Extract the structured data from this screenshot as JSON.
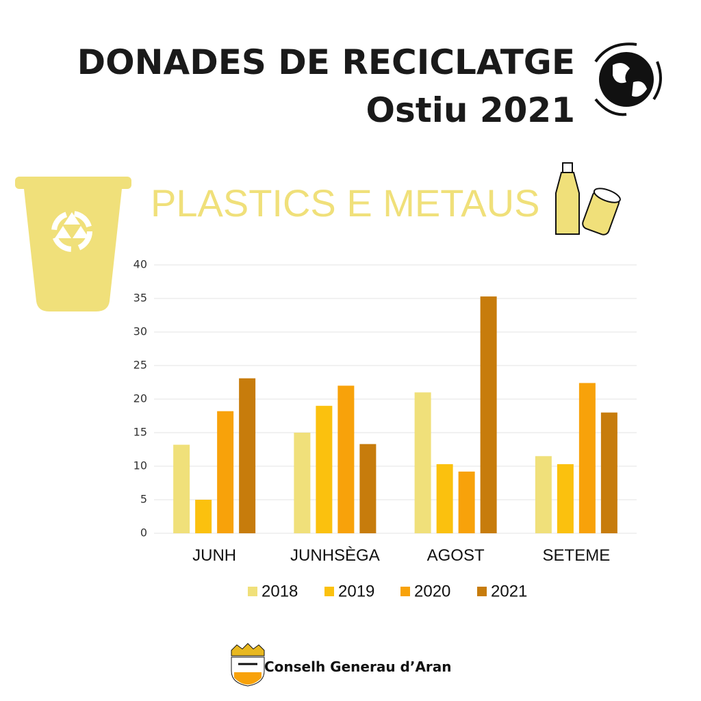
{
  "header": {
    "title": "DONADES DE RECICLATGE",
    "subtitle": "Ostiu 2021"
  },
  "chart_data": {
    "type": "bar",
    "title": "PLASTICS E METAUS",
    "categories": [
      "JUNH",
      "JUNHSÈGA",
      "AGOST",
      "SETEME"
    ],
    "series": [
      {
        "name": "2018",
        "color": "#f0e07a",
        "values": [
          13.2,
          15,
          21,
          11.5
        ]
      },
      {
        "name": "2019",
        "color": "#fbc10e",
        "values": [
          5,
          19,
          10.3,
          10.3
        ]
      },
      {
        "name": "2020",
        "color": "#f8a20a",
        "values": [
          18.2,
          22,
          9.2,
          22.4
        ]
      },
      {
        "name": "2021",
        "color": "#c77c0c",
        "values": [
          23.1,
          13.3,
          35.3,
          18
        ]
      }
    ],
    "ylim": [
      0,
      40
    ],
    "yticks": [
      0,
      5,
      10,
      15,
      20,
      25,
      30,
      35,
      40
    ],
    "grid": true
  },
  "footer": {
    "organization": "Conselh Generau d’Aran"
  }
}
